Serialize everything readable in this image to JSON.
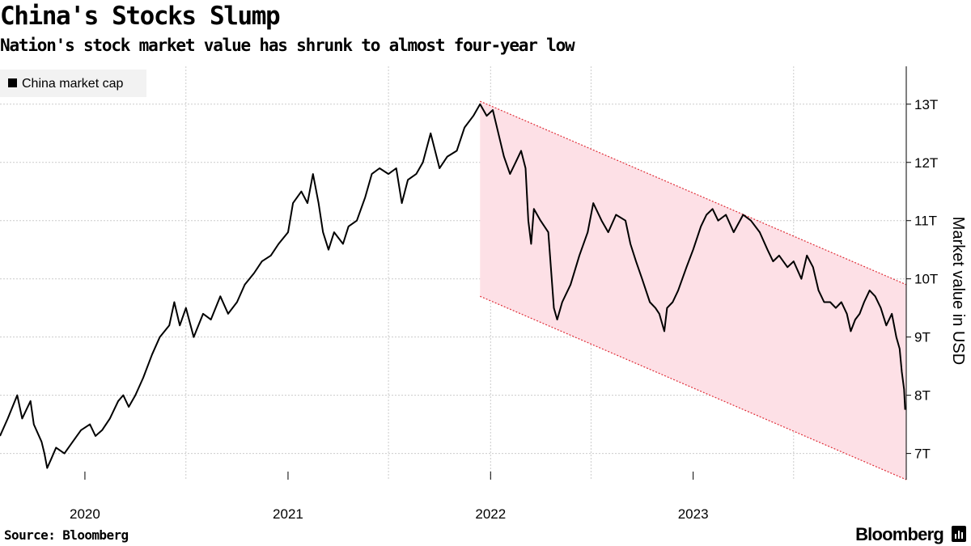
{
  "header": {
    "title": "China's Stocks Slump",
    "subtitle": "Nation's stock market value has shrunk to almost four-year low"
  },
  "footer": {
    "source": "Source: Bloomberg",
    "brand": "Bloomberg"
  },
  "colors": {
    "line": "#000000",
    "channel_fill": "#fde0e6",
    "channel_edge": "#e0303a",
    "grid": "#cccccc",
    "legend_bg": "#f2f2f2"
  },
  "icons": {
    "brand": "bloomberg-chart-icon"
  },
  "chart_data": {
    "type": "line",
    "title": "China's Stocks Slump",
    "subtitle": "Nation's stock market value has shrunk to almost four-year low",
    "xlabel": "",
    "ylabel": "Market value in USD",
    "y_axis_side": "right",
    "legend": {
      "position": "top-left",
      "entries": [
        "China market cap"
      ]
    },
    "grid": true,
    "x_range": [
      "2019-08-01",
      "2024-01-20"
    ],
    "ylim": [
      6.55,
      13.65
    ],
    "x_ticks": [
      {
        "date": "2020-01-01",
        "label": "2020"
      },
      {
        "date": "2021-01-01",
        "label": "2021"
      },
      {
        "date": "2022-01-01",
        "label": "2022"
      },
      {
        "date": "2023-01-01",
        "label": "2023"
      }
    ],
    "x_gridlines": [
      "2020-07-01",
      "2021-07-01",
      "2022-01-01",
      "2022-07-01",
      "2023-07-01"
    ],
    "y_ticks": [
      {
        "value": 7,
        "label": "7T"
      },
      {
        "value": 8,
        "label": "8T"
      },
      {
        "value": 9,
        "label": "9T"
      },
      {
        "value": 10,
        "label": "10T"
      },
      {
        "value": 11,
        "label": "11T"
      },
      {
        "value": 12,
        "label": "12T"
      },
      {
        "value": 13,
        "label": "13T"
      }
    ],
    "channel": {
      "start_date": "2021-12-13",
      "end_date": "2024-01-20",
      "upper": [
        13.05,
        9.9
      ],
      "lower": [
        9.7,
        6.55
      ]
    },
    "series": [
      {
        "name": "China market cap",
        "points": [
          [
            "2019-08-01",
            7.3
          ],
          [
            "2019-08-15",
            7.6
          ],
          [
            "2019-09-01",
            8.0
          ],
          [
            "2019-09-10",
            7.6
          ],
          [
            "2019-09-25",
            7.9
          ],
          [
            "2019-10-01",
            7.5
          ],
          [
            "2019-10-15",
            7.2
          ],
          [
            "2019-10-20",
            7.0
          ],
          [
            "2019-10-25",
            6.75
          ],
          [
            "2019-11-01",
            6.9
          ],
          [
            "2019-11-10",
            7.1
          ],
          [
            "2019-11-25",
            7.0
          ],
          [
            "2019-12-10",
            7.2
          ],
          [
            "2019-12-25",
            7.4
          ],
          [
            "2020-01-10",
            7.5
          ],
          [
            "2020-01-20",
            7.3
          ],
          [
            "2020-02-01",
            7.4
          ],
          [
            "2020-02-15",
            7.6
          ],
          [
            "2020-03-01",
            7.9
          ],
          [
            "2020-03-10",
            8.0
          ],
          [
            "2020-03-20",
            7.8
          ],
          [
            "2020-04-01",
            8.0
          ],
          [
            "2020-04-15",
            8.3
          ],
          [
            "2020-05-01",
            8.7
          ],
          [
            "2020-05-15",
            9.0
          ],
          [
            "2020-06-01",
            9.2
          ],
          [
            "2020-06-10",
            9.6
          ],
          [
            "2020-06-20",
            9.2
          ],
          [
            "2020-07-01",
            9.5
          ],
          [
            "2020-07-15",
            9.0
          ],
          [
            "2020-08-01",
            9.4
          ],
          [
            "2020-08-15",
            9.3
          ],
          [
            "2020-09-01",
            9.7
          ],
          [
            "2020-09-15",
            9.4
          ],
          [
            "2020-10-01",
            9.6
          ],
          [
            "2020-10-15",
            9.9
          ],
          [
            "2020-11-01",
            10.1
          ],
          [
            "2020-11-15",
            10.3
          ],
          [
            "2020-12-01",
            10.4
          ],
          [
            "2020-12-15",
            10.6
          ],
          [
            "2021-01-01",
            10.8
          ],
          [
            "2021-01-10",
            11.3
          ],
          [
            "2021-01-25",
            11.5
          ],
          [
            "2021-02-05",
            11.3
          ],
          [
            "2021-02-15",
            11.8
          ],
          [
            "2021-02-25",
            11.3
          ],
          [
            "2021-03-05",
            10.8
          ],
          [
            "2021-03-15",
            10.5
          ],
          [
            "2021-03-25",
            10.8
          ],
          [
            "2021-04-10",
            10.6
          ],
          [
            "2021-04-20",
            10.9
          ],
          [
            "2021-05-05",
            11.0
          ],
          [
            "2021-05-20",
            11.4
          ],
          [
            "2021-06-01",
            11.8
          ],
          [
            "2021-06-15",
            11.9
          ],
          [
            "2021-07-01",
            11.8
          ],
          [
            "2021-07-15",
            11.9
          ],
          [
            "2021-07-25",
            11.3
          ],
          [
            "2021-08-05",
            11.7
          ],
          [
            "2021-08-20",
            11.8
          ],
          [
            "2021-09-01",
            12.0
          ],
          [
            "2021-09-15",
            12.5
          ],
          [
            "2021-10-01",
            11.9
          ],
          [
            "2021-10-15",
            12.1
          ],
          [
            "2021-11-01",
            12.2
          ],
          [
            "2021-11-15",
            12.6
          ],
          [
            "2021-12-01",
            12.8
          ],
          [
            "2021-12-13",
            13.0
          ],
          [
            "2021-12-25",
            12.8
          ],
          [
            "2022-01-05",
            12.9
          ],
          [
            "2022-01-15",
            12.5
          ],
          [
            "2022-01-25",
            12.1
          ],
          [
            "2022-02-05",
            11.8
          ],
          [
            "2022-02-15",
            12.0
          ],
          [
            "2022-02-25",
            12.2
          ],
          [
            "2022-03-05",
            11.9
          ],
          [
            "2022-03-10",
            11.0
          ],
          [
            "2022-03-15",
            10.6
          ],
          [
            "2022-03-20",
            11.2
          ],
          [
            "2022-04-01",
            11.0
          ],
          [
            "2022-04-15",
            10.8
          ],
          [
            "2022-04-25",
            9.5
          ],
          [
            "2022-05-01",
            9.3
          ],
          [
            "2022-05-10",
            9.6
          ],
          [
            "2022-05-25",
            9.9
          ],
          [
            "2022-06-10",
            10.4
          ],
          [
            "2022-06-25",
            10.8
          ],
          [
            "2022-07-05",
            11.3
          ],
          [
            "2022-07-20",
            11.0
          ],
          [
            "2022-08-01",
            10.8
          ],
          [
            "2022-08-15",
            11.1
          ],
          [
            "2022-09-01",
            11.0
          ],
          [
            "2022-09-10",
            10.6
          ],
          [
            "2022-09-20",
            10.3
          ],
          [
            "2022-10-01",
            10.0
          ],
          [
            "2022-10-15",
            9.6
          ],
          [
            "2022-10-25",
            9.5
          ],
          [
            "2022-11-01",
            9.4
          ],
          [
            "2022-11-10",
            9.1
          ],
          [
            "2022-11-15",
            9.5
          ],
          [
            "2022-11-25",
            9.6
          ],
          [
            "2022-12-05",
            9.8
          ],
          [
            "2022-12-20",
            10.2
          ],
          [
            "2023-01-01",
            10.5
          ],
          [
            "2023-01-15",
            10.9
          ],
          [
            "2023-01-25",
            11.1
          ],
          [
            "2023-02-05",
            11.2
          ],
          [
            "2023-02-15",
            11.0
          ],
          [
            "2023-03-01",
            11.1
          ],
          [
            "2023-03-15",
            10.8
          ],
          [
            "2023-04-01",
            11.1
          ],
          [
            "2023-04-15",
            11.0
          ],
          [
            "2023-05-01",
            10.8
          ],
          [
            "2023-05-15",
            10.5
          ],
          [
            "2023-05-25",
            10.3
          ],
          [
            "2023-06-05",
            10.4
          ],
          [
            "2023-06-20",
            10.2
          ],
          [
            "2023-07-01",
            10.3
          ],
          [
            "2023-07-15",
            10.0
          ],
          [
            "2023-07-25",
            10.4
          ],
          [
            "2023-08-05",
            10.2
          ],
          [
            "2023-08-15",
            9.8
          ],
          [
            "2023-08-25",
            9.6
          ],
          [
            "2023-09-05",
            9.6
          ],
          [
            "2023-09-15",
            9.5
          ],
          [
            "2023-09-25",
            9.6
          ],
          [
            "2023-10-05",
            9.4
          ],
          [
            "2023-10-12",
            9.1
          ],
          [
            "2023-10-20",
            9.3
          ],
          [
            "2023-10-28",
            9.4
          ],
          [
            "2023-11-05",
            9.6
          ],
          [
            "2023-11-15",
            9.8
          ],
          [
            "2023-11-25",
            9.7
          ],
          [
            "2023-12-05",
            9.5
          ],
          [
            "2023-12-15",
            9.2
          ],
          [
            "2023-12-25",
            9.4
          ],
          [
            "2024-01-02",
            9.0
          ],
          [
            "2024-01-08",
            8.8
          ],
          [
            "2024-01-12",
            8.4
          ],
          [
            "2024-01-16",
            8.1
          ],
          [
            "2024-01-18",
            7.75
          ]
        ]
      }
    ]
  }
}
